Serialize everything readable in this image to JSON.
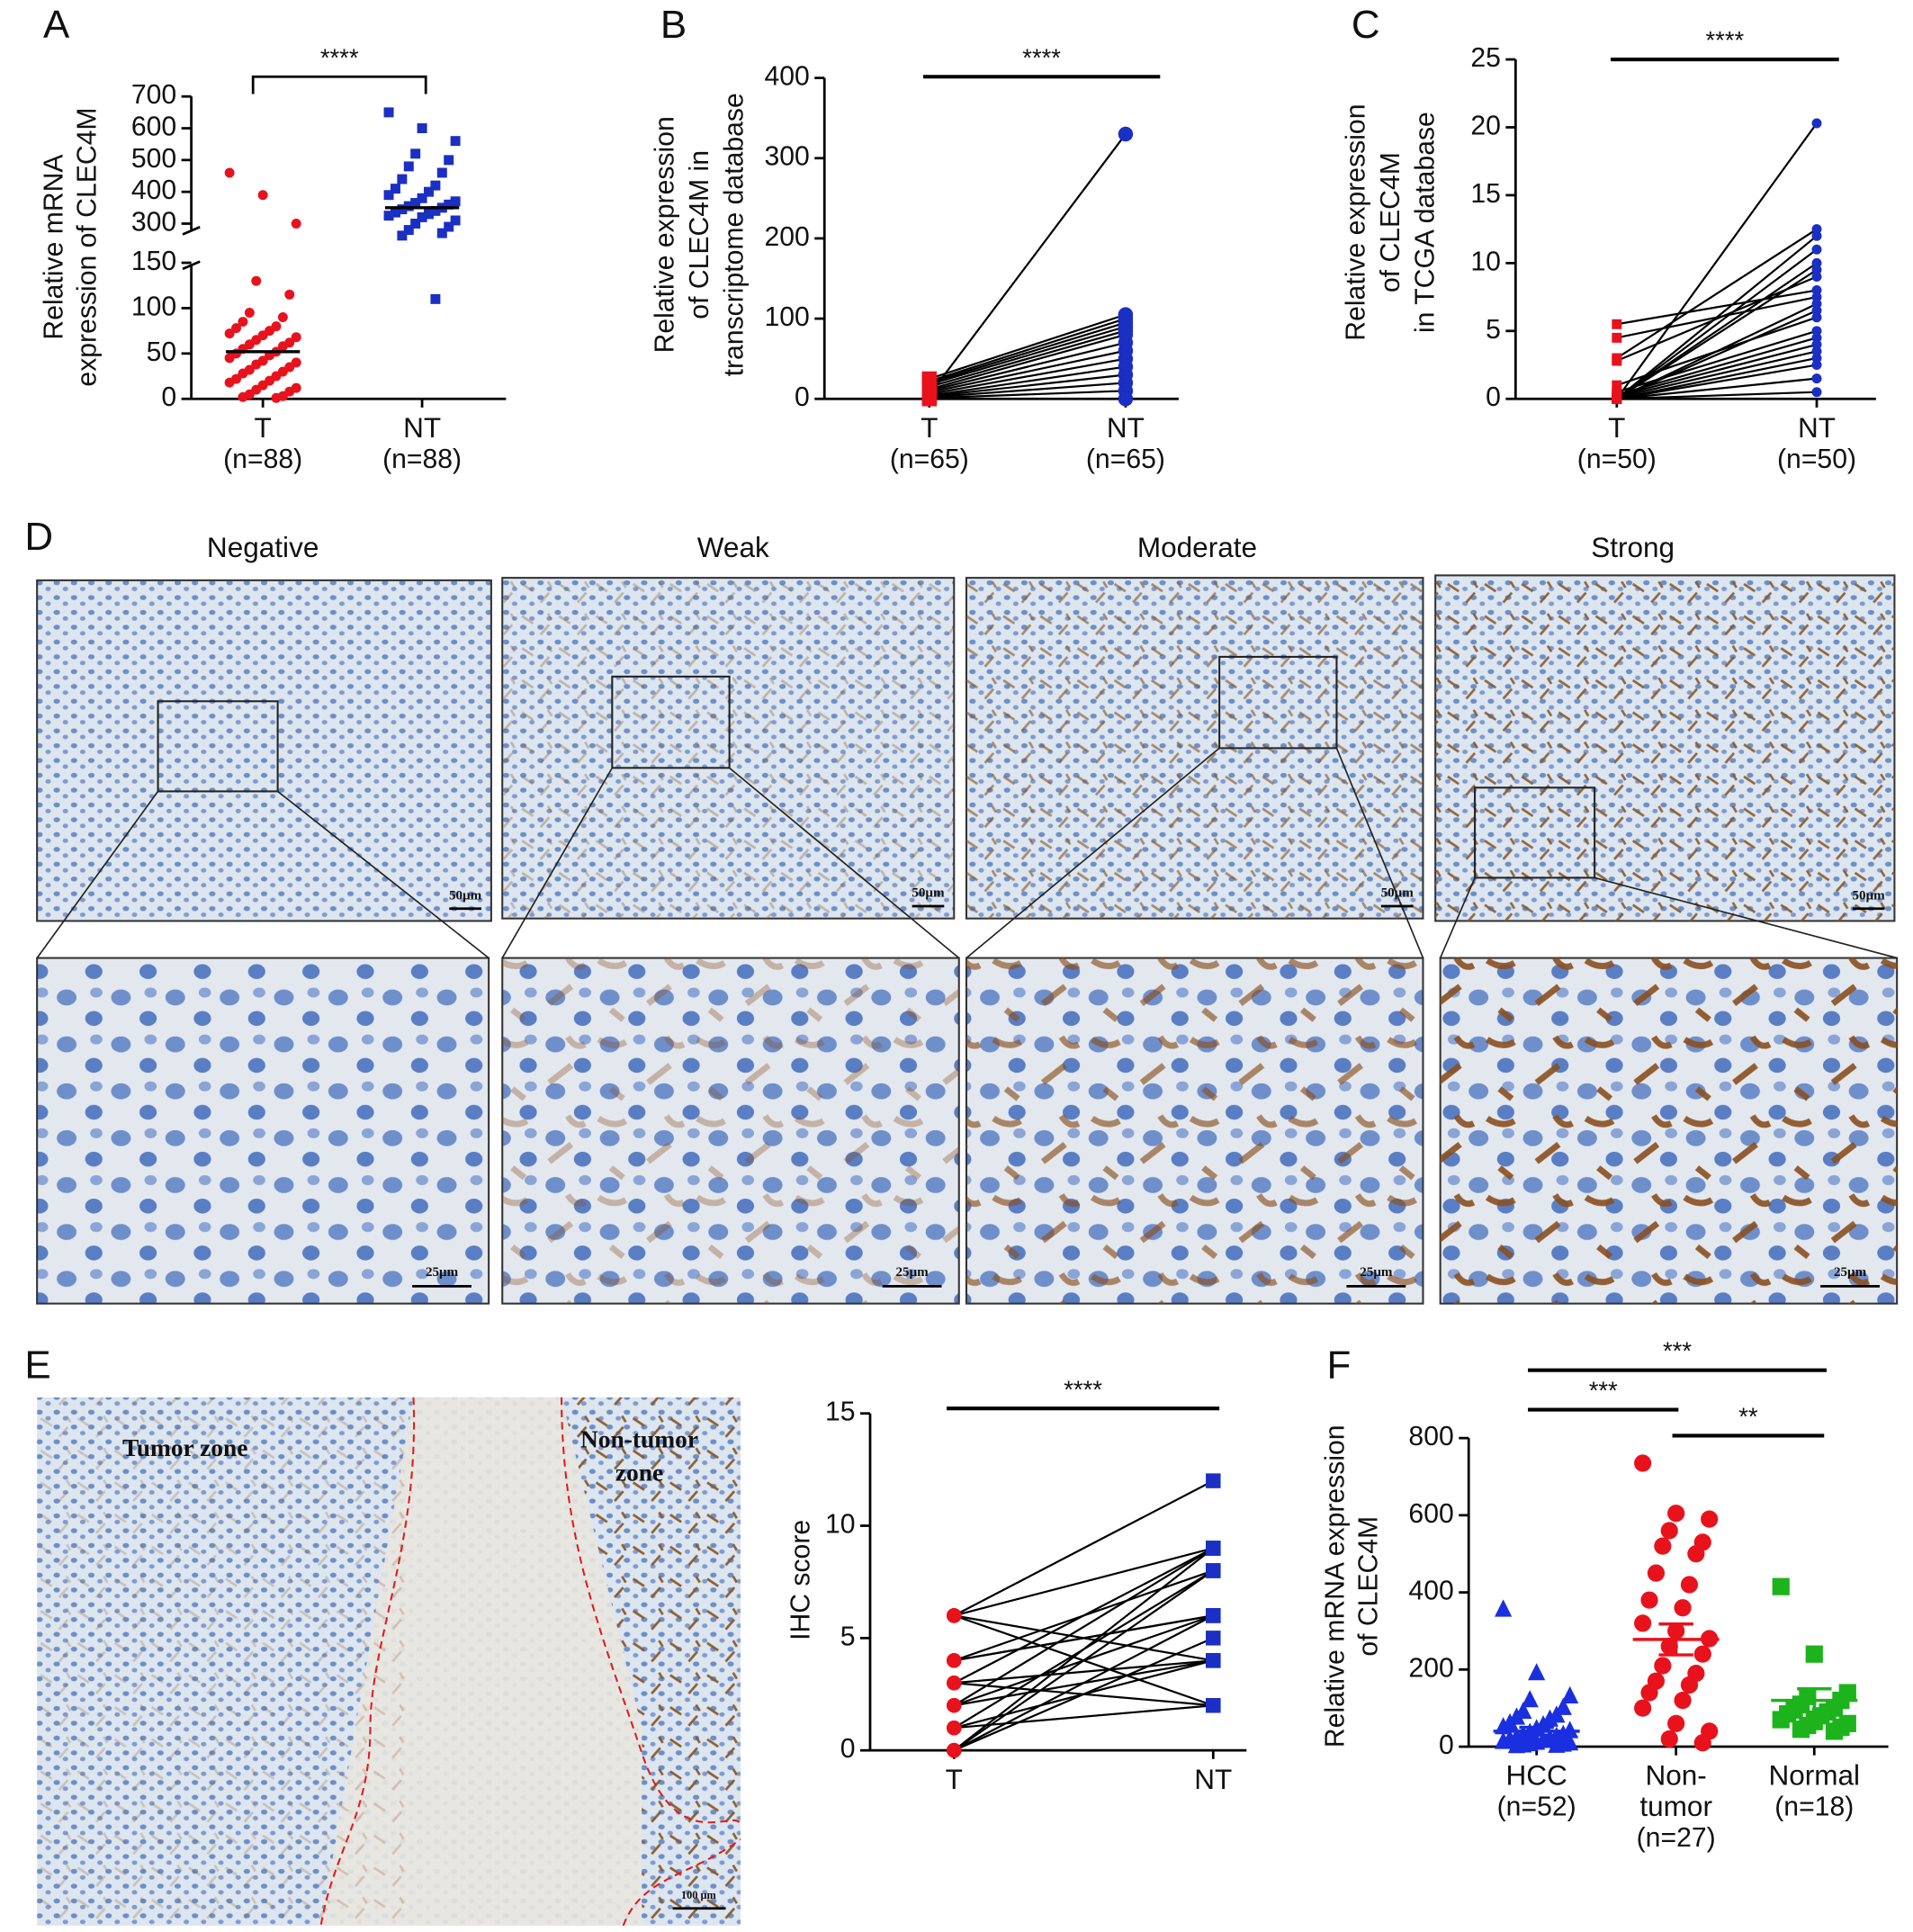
{
  "panels": [
    "A",
    "B",
    "C",
    "D",
    "E",
    "F"
  ],
  "chart_data": [
    {
      "type": "dotplot",
      "ylabel": [
        "Relative mRNA",
        "expression of CLEC4M"
      ],
      "ylim": [
        0,
        700
      ],
      "axis_break": [
        150,
        270
      ],
      "yticks": [
        0,
        50,
        100,
        150,
        300,
        400,
        500,
        600,
        700
      ],
      "significance": [
        "****"
      ],
      "groups": [
        {
          "label": "T",
          "note": "(n=88)",
          "color": "#e8121d",
          "marker": "circle",
          "mean": 52,
          "values": [
            460,
            390,
            300,
            130,
            115,
            95,
            90,
            85,
            80,
            78,
            75,
            72,
            70,
            68,
            65,
            62,
            60,
            58,
            55,
            52,
            50,
            48,
            45,
            42,
            40,
            38,
            35,
            32,
            30,
            28,
            25,
            22,
            20,
            18,
            15,
            12,
            10,
            8,
            5,
            3,
            2,
            1
          ]
        },
        {
          "label": "NT",
          "note": "(n=88)",
          "color": "#1a2fc4",
          "marker": "square",
          "mean": 350,
          "values": [
            650,
            600,
            560,
            520,
            500,
            480,
            460,
            440,
            420,
            410,
            400,
            390,
            380,
            370,
            365,
            360,
            355,
            350,
            345,
            340,
            335,
            330,
            325,
            320,
            310,
            300,
            290,
            280,
            270,
            260,
            110
          ]
        }
      ]
    },
    {
      "type": "paired",
      "ylabel": [
        "Relative expression",
        "of CLEC4M in",
        "transcriptome database"
      ],
      "ylim": [
        0,
        400
      ],
      "yticks": [
        0,
        100,
        200,
        300,
        400
      ],
      "significance": [
        "****"
      ],
      "groups": [
        {
          "label": "T",
          "note": "(n=65)",
          "color": "#e8121d",
          "marker": "square",
          "values": [
            5,
            25,
            22,
            20,
            18,
            15,
            12,
            10,
            8,
            6,
            4,
            3,
            2,
            1,
            0
          ]
        },
        {
          "label": "NT",
          "note": "(n=65)",
          "color": "#1a2fc4",
          "marker": "circle",
          "values": [
            330,
            105,
            100,
            95,
            90,
            85,
            80,
            70,
            60,
            50,
            40,
            30,
            20,
            10,
            0
          ]
        }
      ]
    },
    {
      "type": "paired",
      "ylabel": [
        "Relative expression",
        "of CLEC4M",
        "in TCGA database"
      ],
      "ylim": [
        0,
        25
      ],
      "yticks": [
        0,
        5,
        10,
        15,
        20,
        25
      ],
      "significance": [
        "****"
      ],
      "groups": [
        {
          "label": "T",
          "note": "(n=50)",
          "color": "#e8121d",
          "marker": "square",
          "values": [
            5.5,
            4.5,
            3,
            2.8,
            1,
            0.5,
            0.3,
            0.2,
            0.1,
            0,
            0,
            0,
            0,
            0,
            0,
            0,
            0,
            0,
            0,
            0
          ]
        },
        {
          "label": "NT",
          "note": "(n=50)",
          "color": "#1a2fc4",
          "marker": "circle",
          "values": [
            8,
            7.5,
            12.5,
            9,
            6,
            5,
            4.5,
            4,
            3.5,
            3,
            20.3,
            12,
            11,
            10,
            9.5,
            7,
            6.5,
            2.5,
            1.5,
            0.5
          ]
        }
      ]
    },
    {
      "type": "paired",
      "ylabel": [
        "IHC score"
      ],
      "ylim": [
        0,
        15
      ],
      "yticks": [
        0,
        5,
        10,
        15
      ],
      "significance": [
        "****"
      ],
      "groups": [
        {
          "label": "T",
          "color": "#e8121d",
          "marker": "circle",
          "values": [
            6,
            6,
            6,
            4,
            4,
            3,
            3,
            2,
            2,
            1,
            1,
            0,
            0,
            6,
            4,
            3,
            2,
            1,
            0,
            0
          ]
        },
        {
          "label": "NT",
          "color": "#1a2fc4",
          "marker": "square",
          "values": [
            12,
            9,
            4,
            8,
            6,
            9,
            2,
            6,
            4,
            8,
            2,
            5,
            9,
            2,
            6,
            4,
            9,
            4,
            8,
            6
          ]
        }
      ]
    },
    {
      "type": "dotplot",
      "ylabel": [
        "Relative mRNA expression",
        "of CLEC4M"
      ],
      "ylim": [
        0,
        800
      ],
      "yticks": [
        0,
        200,
        400,
        600,
        800
      ],
      "significance": [
        "***",
        "***",
        "**"
      ],
      "groups": [
        {
          "label": [
            "HCC"
          ],
          "note": "(n=52)",
          "color": "#1a2fe0",
          "marker": "triangle",
          "mean": 40,
          "sem": 10,
          "values": [
            355,
            190,
            130,
            120,
            100,
            90,
            80,
            75,
            70,
            60,
            55,
            50,
            45,
            40,
            35,
            30,
            28,
            25,
            22,
            20,
            18,
            15,
            12,
            10,
            8,
            6,
            5,
            3,
            2,
            1
          ]
        },
        {
          "label": [
            "Non-",
            "tumor"
          ],
          "note": "(n=27)",
          "color": "#e8121d",
          "marker": "circle",
          "mean": 278,
          "sem": 40,
          "values": [
            735,
            605,
            590,
            560,
            530,
            520,
            500,
            450,
            420,
            380,
            360,
            320,
            300,
            280,
            260,
            240,
            210,
            190,
            170,
            160,
            140,
            120,
            100,
            60,
            40,
            20,
            10
          ]
        },
        {
          "label": [
            "Normal"
          ],
          "note": "(n=18)",
          "color": "#1db31d",
          "marker": "square",
          "mean": 120,
          "sem": 30,
          "values": [
            415,
            240,
            140,
            130,
            120,
            110,
            100,
            95,
            90,
            85,
            80,
            70,
            65,
            60,
            55,
            50,
            45,
            40
          ]
        }
      ]
    }
  ],
  "ihc": {
    "columns": [
      "Negative",
      "Weak",
      "Moderate",
      "Strong"
    ],
    "scale_top": "50μm",
    "scale_bottom": "25μm"
  },
  "tissue": {
    "tumor_label": "Tumor zone",
    "nontumor_label": [
      "Non-tumor",
      "zone"
    ],
    "scale": "100 μm"
  }
}
